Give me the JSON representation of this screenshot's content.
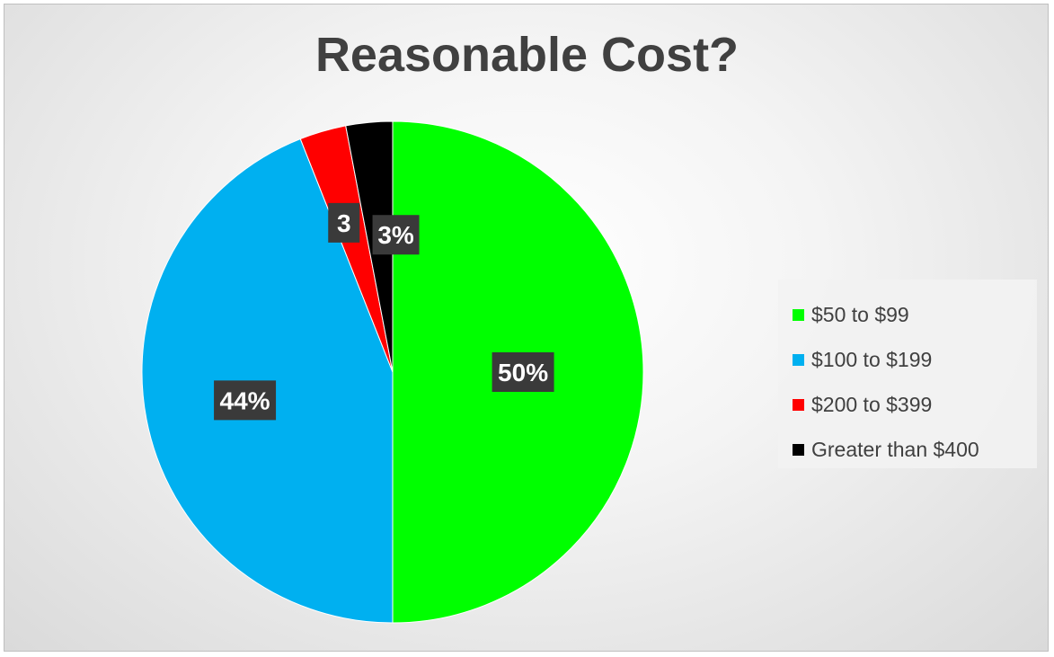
{
  "chart_data": {
    "type": "pie",
    "title": "Reasonable Cost?",
    "categories": [
      "$50 to $99",
      "$100 to $199",
      "$200 to $399",
      "Greater than $400"
    ],
    "values": [
      50,
      44,
      3,
      3
    ],
    "data_labels": [
      "50%",
      "44%",
      "3",
      "3%"
    ],
    "colors": [
      "#00ff00",
      "#00b0f0",
      "#ff0000",
      "#000000"
    ],
    "legend_position": "right"
  }
}
